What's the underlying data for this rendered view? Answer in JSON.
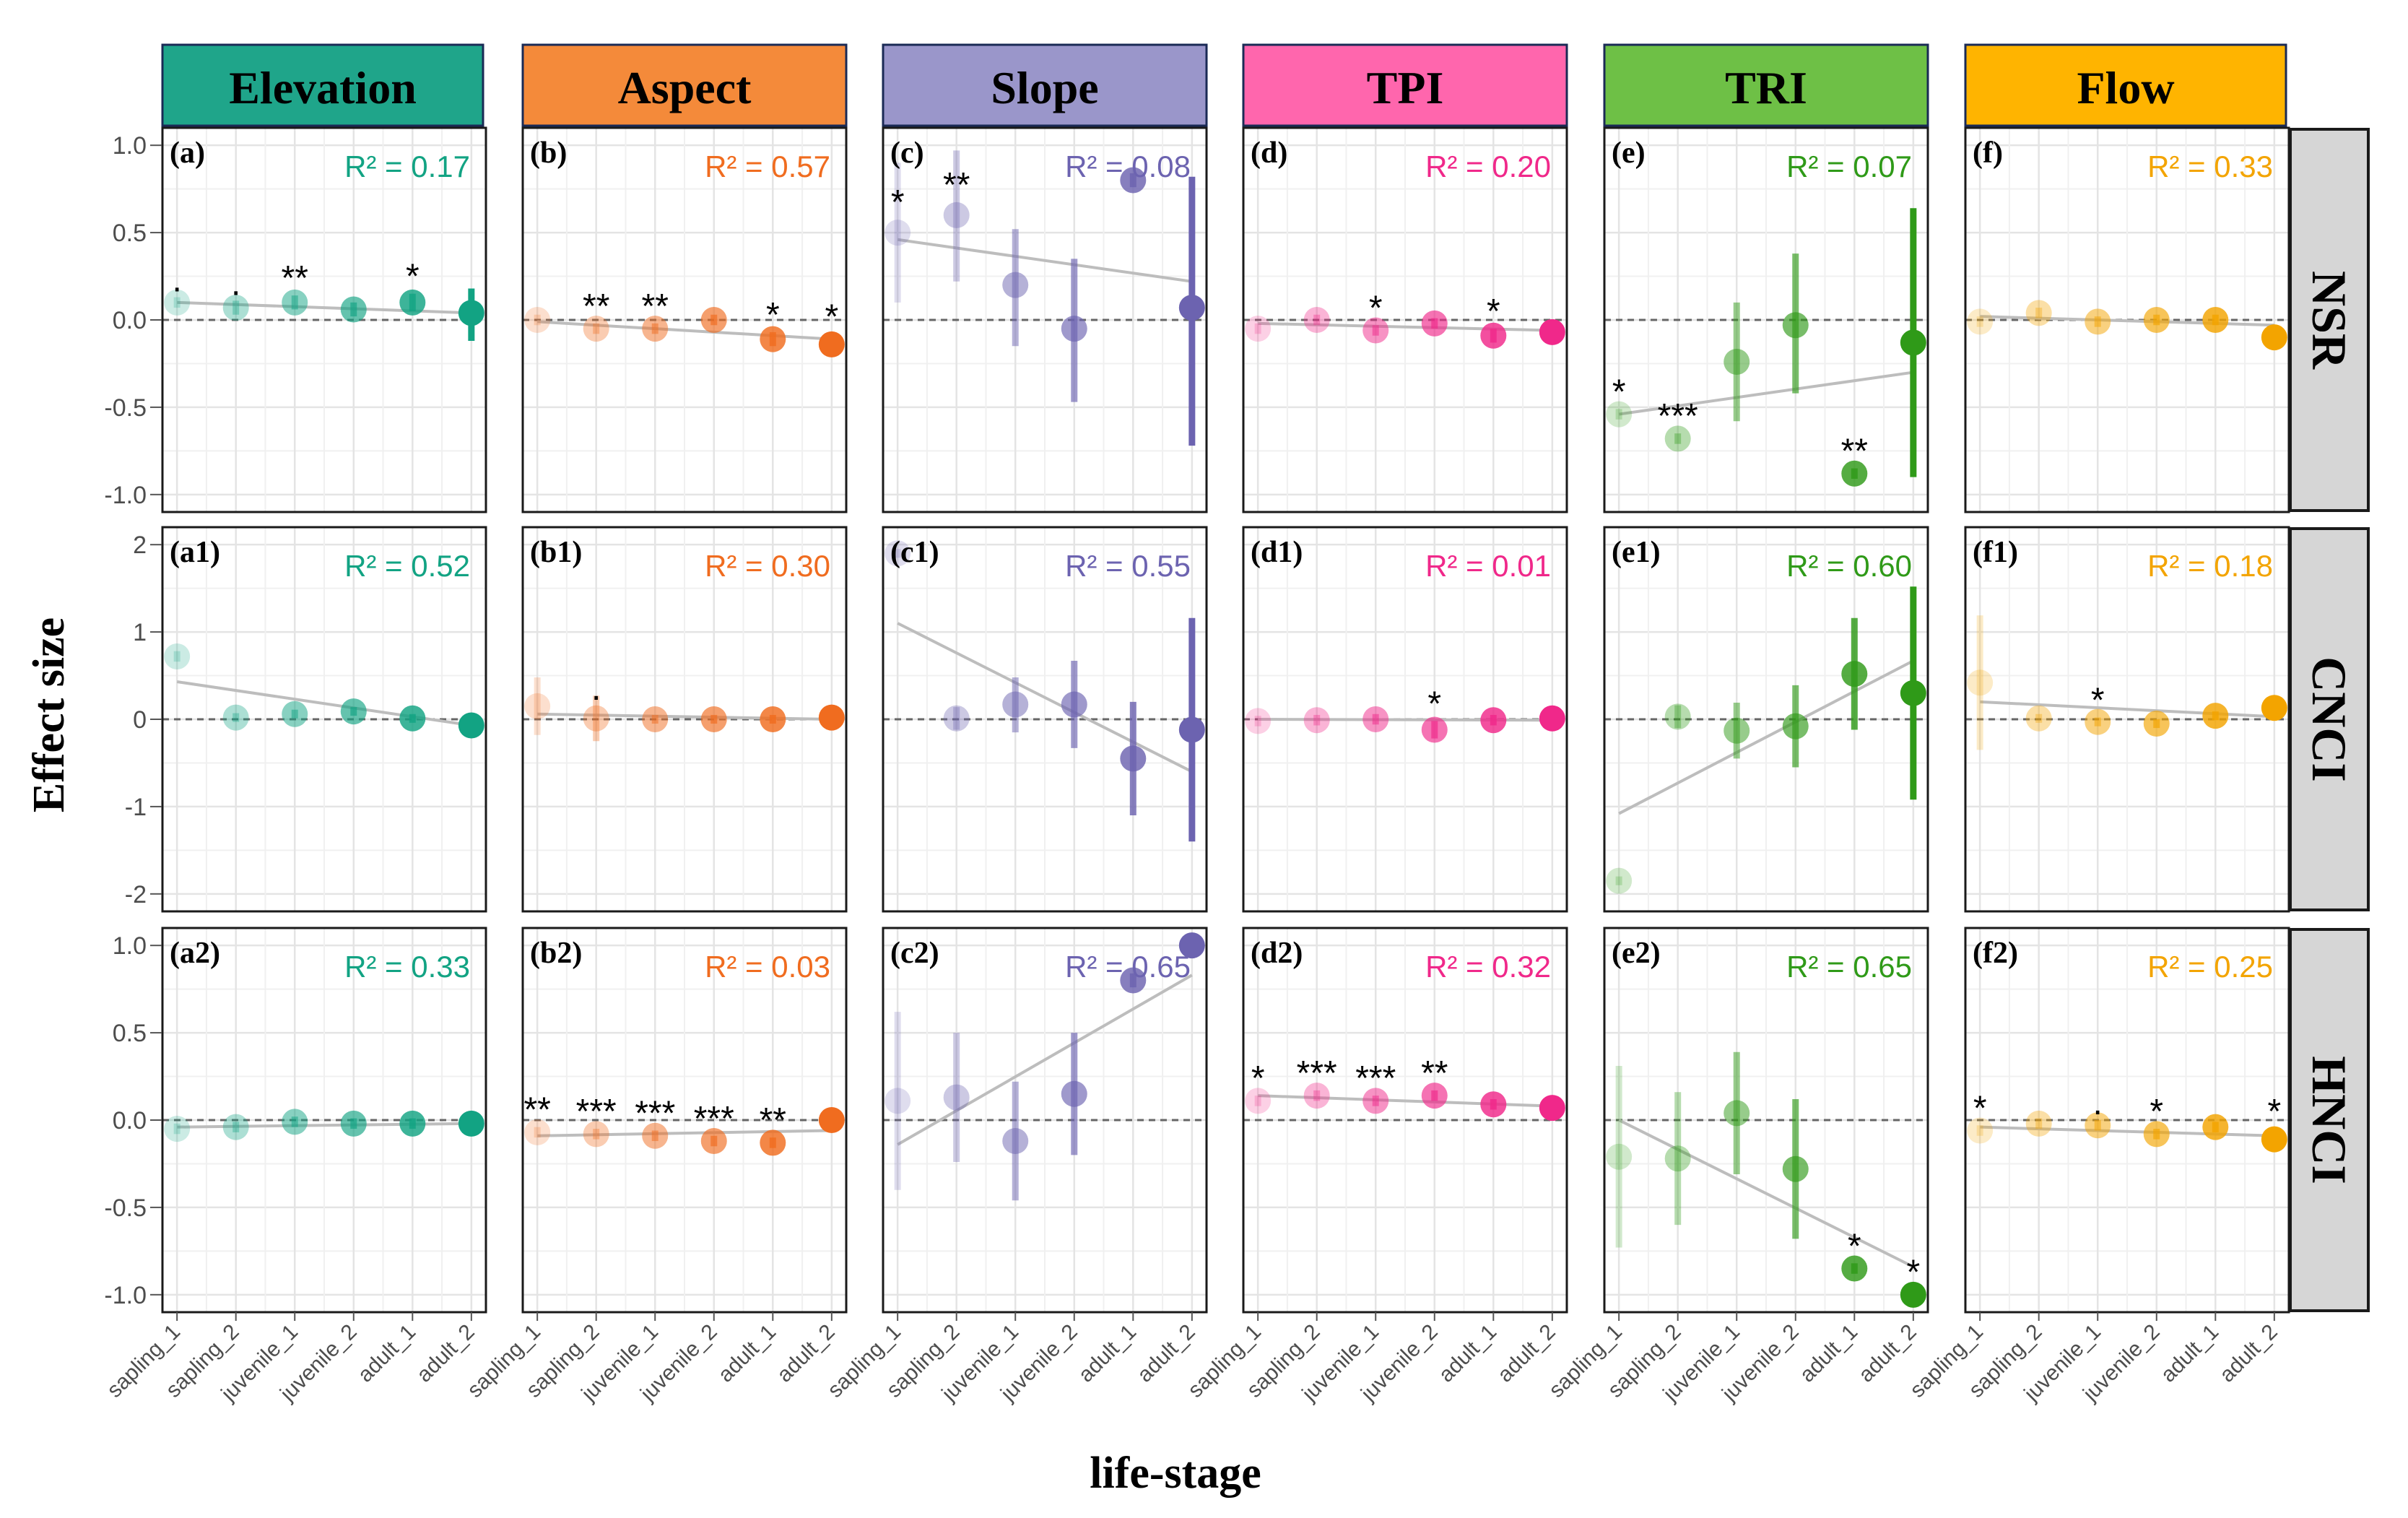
{
  "chart_data": {
    "type": "scatter",
    "xlabel": "life-stage",
    "ylabel": "Effect size",
    "stages": [
      "sapling_1",
      "sapling_2",
      "juvenile_1",
      "juvenile_2",
      "adult_1",
      "adult_2"
    ],
    "columns": [
      {
        "name": "Elevation",
        "color": "#12a383",
        "strip": "#1fa58a"
      },
      {
        "name": "Aspect",
        "color": "#f06c1f",
        "strip": "#f48a3a"
      },
      {
        "name": "Slope",
        "color": "#6c63b0",
        "strip": "#9a96ca"
      },
      {
        "name": "TPI",
        "color": "#f0288a",
        "strip": "#ff66ad"
      },
      {
        "name": "TRI",
        "color": "#2f9a18",
        "strip": "#6ec046"
      },
      {
        "name": "Flow",
        "color": "#f3a400",
        "strip": "#ffb400"
      }
    ],
    "rows": [
      {
        "name": "NSR",
        "ylim": [
          -1.1,
          1.1
        ],
        "yticks": [
          1.0,
          0.5,
          0.0,
          -0.5,
          -1.0
        ],
        "ytick_labels": [
          "1.0",
          "0.5",
          "0.0",
          "-0.5",
          "-1.0"
        ],
        "panels": [
          {
            "label": "(a)",
            "r2": "R² = 0.17",
            "est": [
              0.1,
              0.07,
              0.1,
              0.06,
              0.1,
              0.04
            ],
            "lo": [
              0.07,
              0.03,
              0.06,
              0.02,
              0.05,
              -0.12
            ],
            "hi": [
              0.13,
              0.11,
              0.14,
              0.1,
              0.15,
              0.18
            ],
            "trend": [
              0.1,
              0.04
            ],
            "sig": [
              ".",
              ".",
              "**",
              "",
              "*",
              ""
            ]
          },
          {
            "label": "(b)",
            "r2": "R² = 0.57",
            "est": [
              0.0,
              -0.05,
              -0.05,
              0.0,
              -0.11,
              -0.14
            ],
            "lo": [
              -0.03,
              -0.08,
              -0.08,
              -0.03,
              -0.15,
              -0.2
            ],
            "hi": [
              0.03,
              -0.02,
              -0.02,
              0.03,
              -0.07,
              -0.08
            ],
            "trend": [
              -0.01,
              -0.11
            ],
            "sig": [
              "",
              "**",
              "**",
              "",
              "*",
              "*"
            ]
          },
          {
            "label": "(c)",
            "r2": "R² = 0.08",
            "est": [
              0.5,
              0.6,
              0.2,
              -0.05,
              0.8,
              0.07
            ],
            "lo": [
              0.1,
              0.22,
              -0.15,
              -0.47,
              0.76,
              -0.72
            ],
            "hi": [
              0.9,
              0.97,
              0.52,
              0.35,
              0.84,
              0.82
            ],
            "trend": [
              0.46,
              0.22
            ],
            "sig": [
              "*",
              "**",
              "",
              "",
              "",
              ""
            ]
          },
          {
            "label": "(d)",
            "r2": "R² = 0.20",
            "est": [
              -0.05,
              0.0,
              -0.06,
              -0.02,
              -0.09,
              -0.07
            ],
            "lo": [
              -0.08,
              -0.03,
              -0.09,
              -0.05,
              -0.13,
              -0.14
            ],
            "hi": [
              -0.02,
              0.03,
              -0.03,
              0.01,
              -0.05,
              0.0
            ],
            "trend": [
              -0.02,
              -0.06
            ],
            "sig": [
              "",
              "",
              "*",
              "",
              "*",
              ""
            ]
          },
          {
            "label": "(e)",
            "r2": "R² = 0.07",
            "est": [
              -0.54,
              -0.68,
              -0.24,
              -0.03,
              -0.88,
              -0.13
            ],
            "lo": [
              -0.57,
              -0.71,
              -0.58,
              -0.42,
              -0.91,
              -0.9
            ],
            "hi": [
              -0.51,
              -0.65,
              0.1,
              0.38,
              -0.85,
              0.64
            ],
            "trend": [
              -0.54,
              -0.3
            ],
            "sig": [
              "*",
              "***",
              "",
              "",
              "**",
              ""
            ]
          },
          {
            "label": "(f)",
            "r2": "R² = 0.33",
            "est": [
              -0.01,
              0.04,
              -0.01,
              0.0,
              0.0,
              -0.1
            ],
            "lo": [
              -0.04,
              0.01,
              -0.04,
              -0.03,
              -0.03,
              -0.17
            ],
            "hi": [
              0.02,
              0.07,
              0.02,
              0.03,
              0.03,
              -0.03
            ],
            "trend": [
              0.02,
              -0.03
            ],
            "sig": [
              "",
              "",
              "",
              "",
              "",
              ""
            ]
          }
        ]
      },
      {
        "name": "CNCI",
        "ylim": [
          -2.2,
          2.2
        ],
        "yticks": [
          2,
          1,
          0,
          -1,
          -2
        ],
        "ytick_labels": [
          "2",
          "1",
          "0",
          "-1",
          "-2"
        ],
        "panels": [
          {
            "label": "(a1)",
            "r2": "R² = 0.52",
            "est": [
              0.72,
              0.02,
              0.06,
              0.09,
              0.01,
              -0.07
            ],
            "lo": [
              0.66,
              -0.03,
              0.01,
              0.04,
              -0.04,
              -0.2
            ],
            "hi": [
              0.78,
              0.07,
              0.11,
              0.14,
              0.06,
              0.06
            ],
            "trend": [
              0.43,
              -0.07
            ],
            "sig": [
              "",
              "",
              "",
              "",
              "",
              ""
            ]
          },
          {
            "label": "(b1)",
            "r2": "R² = 0.30",
            "est": [
              0.15,
              0.01,
              0.0,
              0.0,
              0.0,
              0.02
            ],
            "lo": [
              -0.18,
              -0.25,
              -0.05,
              -0.05,
              -0.05,
              -0.03
            ],
            "hi": [
              0.48,
              0.27,
              0.05,
              0.05,
              0.05,
              0.07
            ],
            "trend": [
              0.06,
              0.0
            ],
            "sig": [
              "",
              ".",
              "",
              "",
              "",
              ""
            ]
          },
          {
            "label": "(c1)",
            "r2": "R² = 0.55",
            "est": [
              1.9,
              0.01,
              0.17,
              0.17,
              -0.45,
              -0.12
            ],
            "lo": [
              1.85,
              -0.12,
              -0.15,
              -0.33,
              -1.1,
              -1.4
            ],
            "hi": [
              1.95,
              0.14,
              0.48,
              0.67,
              0.2,
              1.16
            ],
            "trend": [
              1.1,
              -0.6
            ],
            "sig": [
              "",
              "",
              "",
              "",
              "",
              ""
            ]
          },
          {
            "label": "(d1)",
            "r2": "R² = 0.01",
            "est": [
              -0.02,
              -0.01,
              0.0,
              -0.12,
              -0.01,
              0.01
            ],
            "lo": [
              -0.08,
              -0.07,
              -0.06,
              -0.22,
              -0.07,
              -0.05
            ],
            "hi": [
              0.04,
              0.05,
              0.06,
              -0.02,
              0.05,
              0.07
            ],
            "trend": [
              0.0,
              -0.01
            ],
            "sig": [
              "",
              "",
              "",
              "*",
              "",
              ""
            ]
          },
          {
            "label": "(e1)",
            "r2": "R² = 0.60",
            "est": [
              -1.85,
              0.03,
              -0.13,
              -0.08,
              0.52,
              0.3
            ],
            "lo": [
              -1.9,
              -0.1,
              -0.45,
              -0.55,
              -0.12,
              -0.92
            ],
            "hi": [
              -1.8,
              0.16,
              0.19,
              0.39,
              1.16,
              1.52
            ],
            "trend": [
              -1.08,
              0.67
            ],
            "sig": [
              "",
              "",
              "",
              "",
              "",
              ""
            ]
          },
          {
            "label": "(f1)",
            "r2": "R² = 0.18",
            "est": [
              0.42,
              0.01,
              -0.03,
              -0.05,
              0.04,
              0.13
            ],
            "lo": [
              -0.35,
              -0.04,
              -0.08,
              -0.1,
              -0.01,
              0.08
            ],
            "hi": [
              1.19,
              0.06,
              0.02,
              0.0,
              0.09,
              0.18
            ],
            "trend": [
              0.2,
              0.03
            ],
            "sig": [
              "",
              "",
              "*",
              "",
              "",
              ""
            ]
          }
        ]
      },
      {
        "name": "HNCI",
        "ylim": [
          -1.1,
          1.1
        ],
        "yticks": [
          1.0,
          0.5,
          0.0,
          -0.5,
          -1.0
        ],
        "ytick_labels": [
          "1.0",
          "0.5",
          "0.0",
          "-0.5",
          "-1.0"
        ],
        "panels": [
          {
            "label": "(a2)",
            "r2": "R² = 0.33",
            "est": [
              -0.05,
              -0.04,
              -0.01,
              -0.02,
              -0.02,
              -0.02
            ],
            "lo": [
              -0.08,
              -0.07,
              -0.04,
              -0.05,
              -0.05,
              -0.05
            ],
            "hi": [
              -0.02,
              -0.01,
              0.02,
              0.01,
              0.01,
              0.01
            ],
            "trend": [
              -0.04,
              -0.02
            ],
            "sig": [
              "",
              "",
              "",
              "",
              "",
              ""
            ]
          },
          {
            "label": "(b2)",
            "r2": "R² = 0.03",
            "est": [
              -0.07,
              -0.08,
              -0.09,
              -0.12,
              -0.13,
              0.0
            ],
            "lo": [
              -0.1,
              -0.11,
              -0.12,
              -0.15,
              -0.16,
              -0.03
            ],
            "hi": [
              -0.04,
              -0.05,
              -0.06,
              -0.09,
              -0.1,
              0.03
            ],
            "trend": [
              -0.09,
              -0.06
            ],
            "sig": [
              "**",
              "***",
              "***",
              "***",
              "**",
              ""
            ]
          },
          {
            "label": "(c2)",
            "r2": "R² = 0.65",
            "est": [
              0.11,
              0.13,
              -0.12,
              0.15,
              0.8,
              1.0
            ],
            "lo": [
              -0.4,
              -0.24,
              -0.46,
              -0.2,
              0.76,
              0.96
            ],
            "hi": [
              0.62,
              0.5,
              0.22,
              0.5,
              0.84,
              1.04
            ],
            "trend": [
              -0.14,
              0.83
            ],
            "sig": [
              "",
              "",
              "",
              "",
              "",
              ""
            ]
          },
          {
            "label": "(d2)",
            "r2": "R² = 0.32",
            "est": [
              0.11,
              0.14,
              0.11,
              0.14,
              0.09,
              0.07
            ],
            "lo": [
              0.08,
              0.11,
              0.08,
              0.11,
              0.06,
              0.0
            ],
            "hi": [
              0.14,
              0.17,
              0.14,
              0.17,
              0.12,
              0.14
            ],
            "trend": [
              0.14,
              0.08
            ],
            "sig": [
              "*",
              "***",
              "***",
              "**",
              "",
              ""
            ]
          },
          {
            "label": "(e2)",
            "r2": "R² = 0.65",
            "est": [
              -0.21,
              -0.22,
              0.04,
              -0.28,
              -0.85,
              -1.0
            ],
            "lo": [
              -0.73,
              -0.6,
              -0.31,
              -0.68,
              -0.88,
              -1.03
            ],
            "hi": [
              0.31,
              0.16,
              0.39,
              0.12,
              -0.82,
              -0.97
            ],
            "trend": [
              0.0,
              -0.84
            ],
            "sig": [
              "",
              "",
              "",
              "",
              "*",
              "*"
            ]
          },
          {
            "label": "(f2)",
            "r2": "R² = 0.25",
            "est": [
              -0.06,
              -0.02,
              -0.03,
              -0.08,
              -0.04,
              -0.11
            ],
            "lo": [
              -0.09,
              -0.05,
              -0.06,
              -0.11,
              -0.07,
              -0.17
            ],
            "hi": [
              -0.03,
              0.01,
              0.0,
              -0.05,
              -0.01,
              -0.05
            ],
            "trend": [
              -0.04,
              -0.09
            ],
            "sig": [
              "*",
              "",
              ".",
              "*",
              "",
              "*"
            ]
          }
        ]
      }
    ]
  }
}
